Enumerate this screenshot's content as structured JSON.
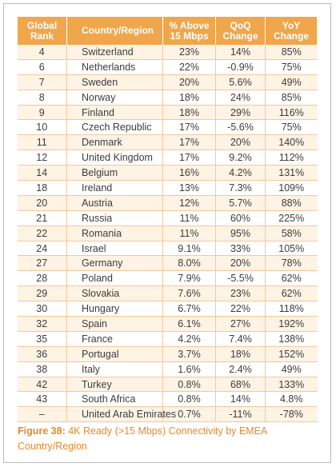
{
  "table": {
    "headers": {
      "rank": [
        "Global",
        "Rank"
      ],
      "country": "Country/Region",
      "above15": [
        "% Above",
        "15 Mbps"
      ],
      "qoq": [
        "QoQ",
        "Change"
      ],
      "yoy": [
        "YoY",
        "Change"
      ]
    },
    "rows": [
      {
        "rank": "4",
        "country": "Switzerland",
        "above15": "23%",
        "qoq": "14%",
        "yoy": "85%"
      },
      {
        "rank": "6",
        "country": "Netherlands",
        "above15": "22%",
        "qoq": "-0.9%",
        "yoy": "75%"
      },
      {
        "rank": "7",
        "country": "Sweden",
        "above15": "20%",
        "qoq": "5.6%",
        "yoy": "49%"
      },
      {
        "rank": "8",
        "country": "Norway",
        "above15": "18%",
        "qoq": "24%",
        "yoy": "85%"
      },
      {
        "rank": "9",
        "country": "Finland",
        "above15": "18%",
        "qoq": "29%",
        "yoy": "116%"
      },
      {
        "rank": "10",
        "country": "Czech Republic",
        "above15": "17%",
        "qoq": "-5.6%",
        "yoy": "75%"
      },
      {
        "rank": "11",
        "country": "Denmark",
        "above15": "17%",
        "qoq": "20%",
        "yoy": "140%"
      },
      {
        "rank": "12",
        "country": "United Kingdom",
        "above15": "17%",
        "qoq": "9.2%",
        "yoy": "112%"
      },
      {
        "rank": "14",
        "country": "Belgium",
        "above15": "16%",
        "qoq": "4.2%",
        "yoy": "131%"
      },
      {
        "rank": "18",
        "country": "Ireland",
        "above15": "13%",
        "qoq": "7.3%",
        "yoy": "109%"
      },
      {
        "rank": "20",
        "country": "Austria",
        "above15": "12%",
        "qoq": "5.7%",
        "yoy": "88%"
      },
      {
        "rank": "21",
        "country": "Russia",
        "above15": "11%",
        "qoq": "60%",
        "yoy": "225%"
      },
      {
        "rank": "22",
        "country": "Romania",
        "above15": "11%",
        "qoq": "95%",
        "yoy": "58%"
      },
      {
        "rank": "24",
        "country": "Israel",
        "above15": "9.1%",
        "qoq": "33%",
        "yoy": "105%"
      },
      {
        "rank": "27",
        "country": "Germany",
        "above15": "8.0%",
        "qoq": "20%",
        "yoy": "78%"
      },
      {
        "rank": "28",
        "country": "Poland",
        "above15": "7.9%",
        "qoq": "-5.5%",
        "yoy": "62%"
      },
      {
        "rank": "29",
        "country": "Slovakia",
        "above15": "7.6%",
        "qoq": "23%",
        "yoy": "62%"
      },
      {
        "rank": "30",
        "country": "Hungary",
        "above15": "6.7%",
        "qoq": "22%",
        "yoy": "118%"
      },
      {
        "rank": "32",
        "country": "Spain",
        "above15": "6.1%",
        "qoq": "27%",
        "yoy": "192%"
      },
      {
        "rank": "35",
        "country": "France",
        "above15": "4.2%",
        "qoq": "7.4%",
        "yoy": "138%"
      },
      {
        "rank": "36",
        "country": "Portugal",
        "above15": "3.7%",
        "qoq": "18%",
        "yoy": "152%"
      },
      {
        "rank": "38",
        "country": "Italy",
        "above15": "1.6%",
        "qoq": "2.4%",
        "yoy": "49%"
      },
      {
        "rank": "42",
        "country": "Turkey",
        "above15": "0.8%",
        "qoq": "68%",
        "yoy": "133%"
      },
      {
        "rank": "43",
        "country": "South Africa",
        "above15": "0.8%",
        "qoq": "14%",
        "yoy": "4.8%"
      },
      {
        "rank": "–",
        "country": "United Arab Emirates",
        "above15": "0.7%",
        "qoq": "-11%",
        "yoy": "-78%"
      }
    ]
  },
  "caption": {
    "label": "Figure 38:",
    "line1": "4K Ready (>15 Mbps) Connectivity by EMEA",
    "line2": "Country/Region"
  },
  "colors": {
    "header_bg": "#f0a64b",
    "stripe_bg": "#fff3e4",
    "caption_text": "#e8872a",
    "grid_lines": "#f3c89b"
  }
}
